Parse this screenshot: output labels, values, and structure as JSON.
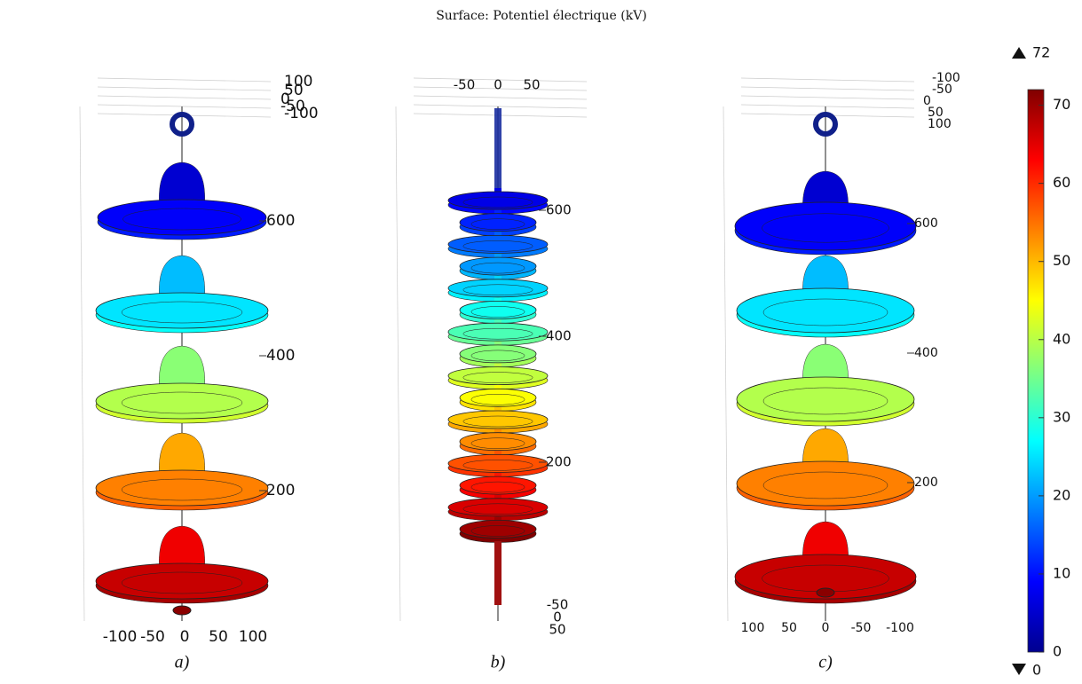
{
  "title": "Surface: Potentiel électrique (kV)",
  "colorbar": {
    "max": 72,
    "min": 0,
    "ticks": [
      0,
      10,
      20,
      30,
      40,
      50,
      60,
      70
    ]
  },
  "panels": [
    {
      "caption": "a)",
      "top_ticks": [
        100,
        50,
        0,
        -50,
        -100
      ],
      "z_ticks": [
        600,
        400,
        200
      ],
      "bottom_ticks": [
        -100,
        -50,
        0,
        50,
        100
      ]
    },
    {
      "caption": "b)",
      "top_ticks": [
        -50,
        0,
        50
      ],
      "z_ticks": [
        600,
        400,
        200
      ],
      "bottom_ticks": [
        -50,
        0,
        50
      ]
    },
    {
      "caption": "c)",
      "top_ticks": [
        -100,
        -50,
        0,
        50,
        100
      ],
      "z_ticks": [
        600,
        400,
        200
      ],
      "bottom_ticks": [
        100,
        50,
        0,
        -50,
        -100
      ]
    }
  ]
}
